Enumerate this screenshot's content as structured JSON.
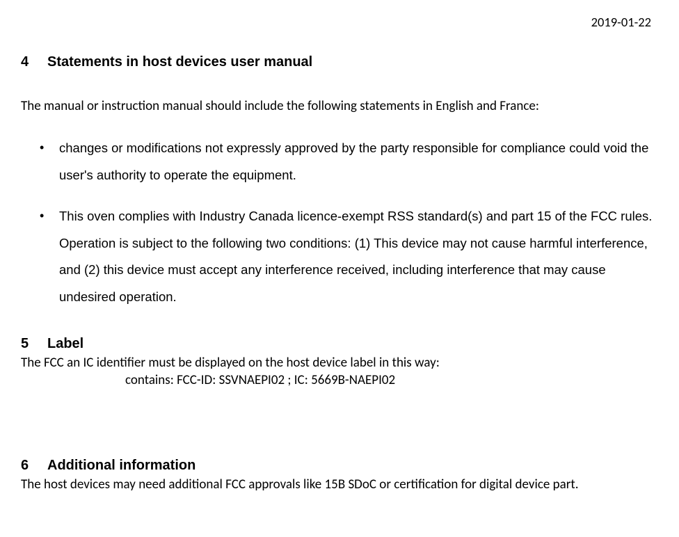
{
  "header": {
    "date": "2019-01-22"
  },
  "section4": {
    "number": "4",
    "title": "Statements in host devices user manual",
    "intro": "The manual or instruction manual should include the following statements in English and France:",
    "bullets": [
      "changes or modifications not expressly approved by the party responsible for compliance could void the user's authority to operate the equipment.",
      "This oven complies with Industry Canada licence-exempt RSS standard(s) and part 15 of the FCC rules. Operation is subject to the following two conditions: (1) This device may not cause harmful interference, and (2) this device must accept any interference received, including interference that may cause undesired operation."
    ]
  },
  "section5": {
    "number": "5",
    "title": "Label",
    "intro": "The FCC an IC identifier must be displayed on the host device label in this way:",
    "content": "contains: FCC-ID: SSVNAEPI02 ; IC: 5669B-NAEPI02"
  },
  "section6": {
    "number": "6",
    "title": "Additional information",
    "body": "The host devices may need additional FCC approvals like 15B SDoC or certification for digital device part."
  }
}
